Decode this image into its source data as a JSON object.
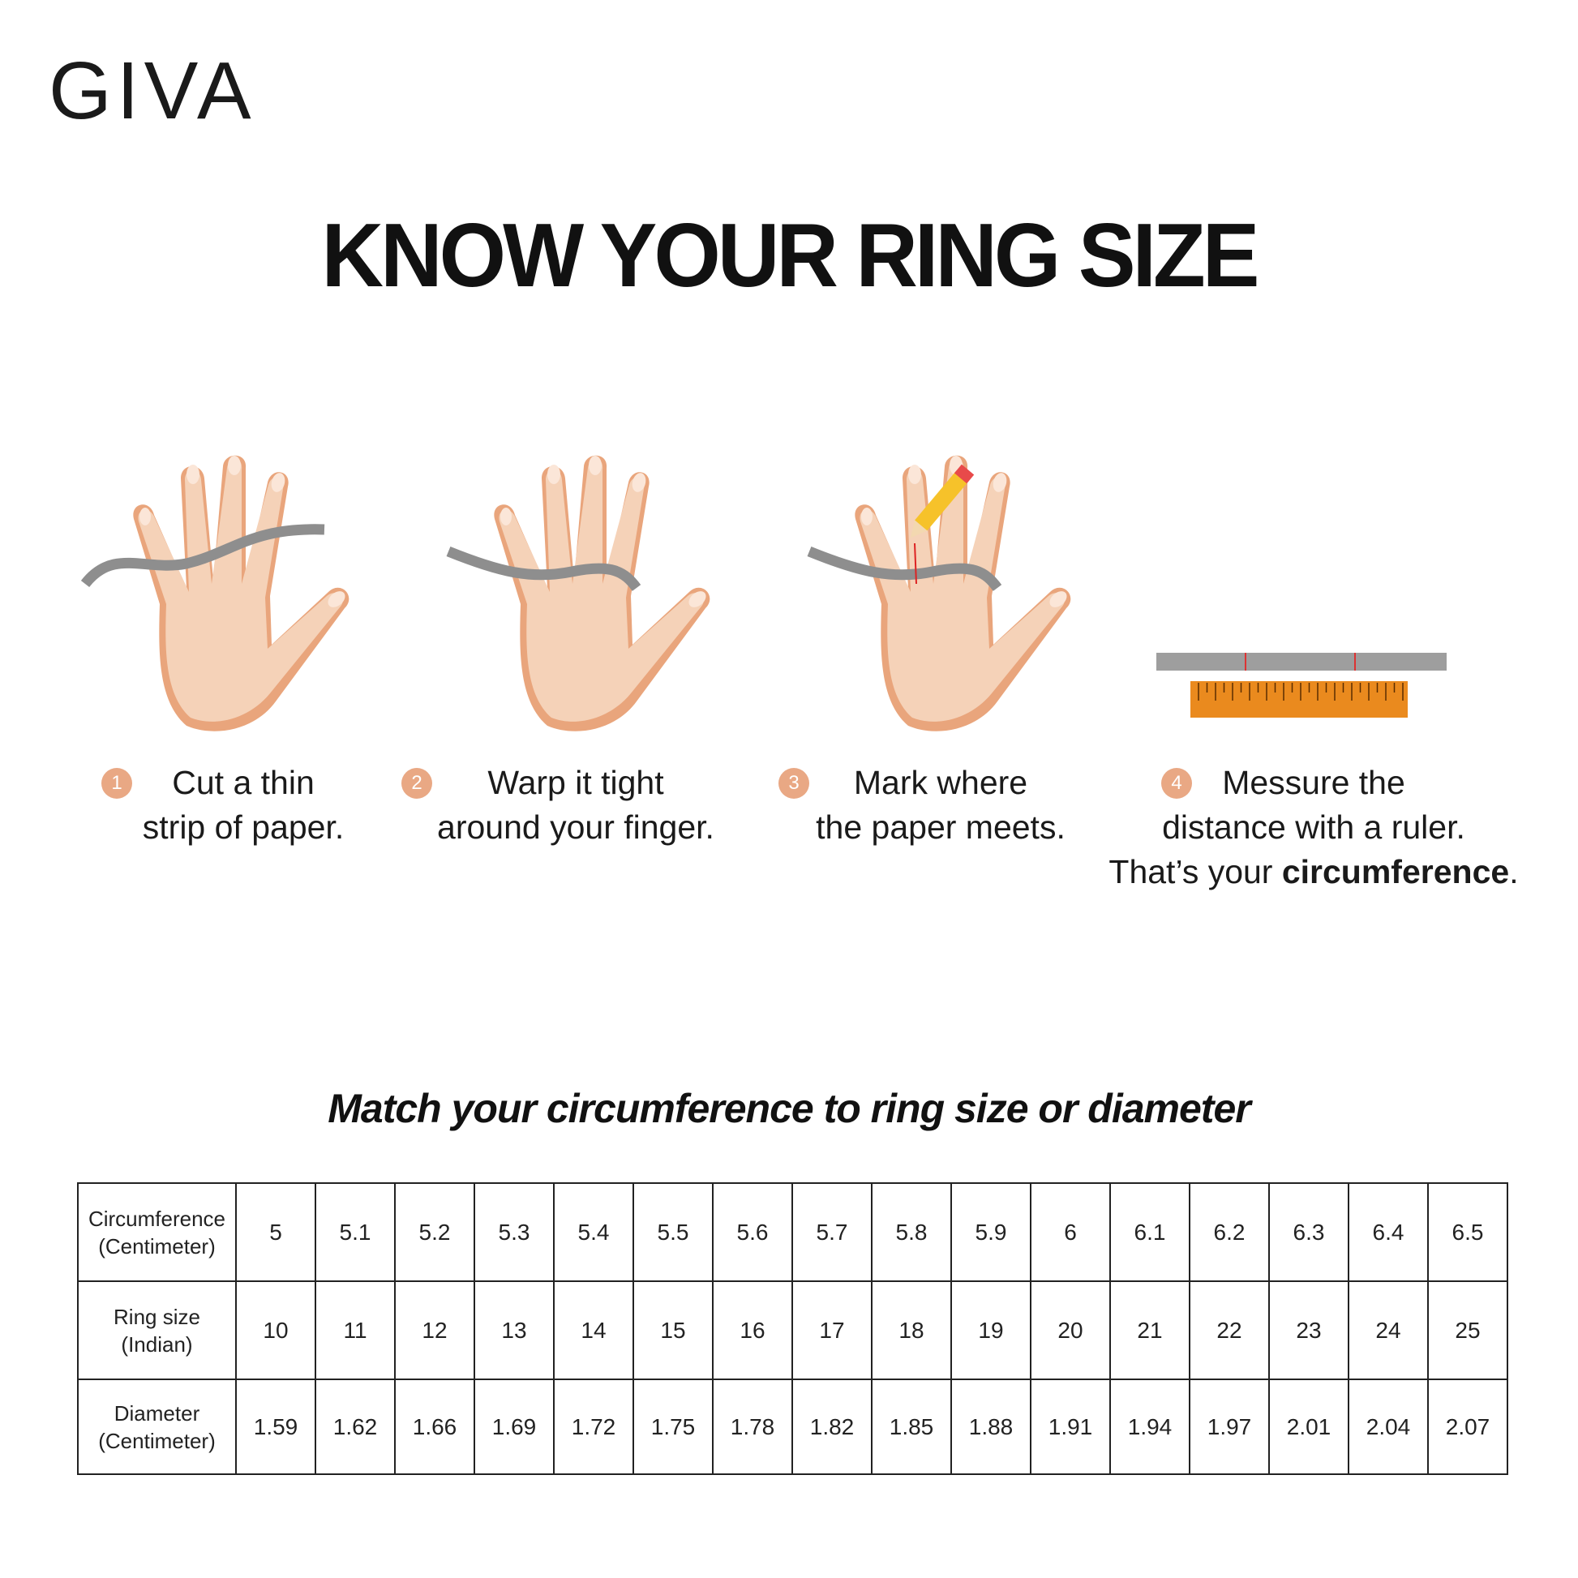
{
  "brand": {
    "logo_text": "GIVA"
  },
  "title": "KNOW YOUR RING SIZE",
  "steps": [
    {
      "number": "1",
      "line1": "Cut a thin",
      "line2": "strip of paper."
    },
    {
      "number": "2",
      "line1": "Warp it tight",
      "line2": "around your finger."
    },
    {
      "number": "3",
      "line1": "Mark where",
      "line2": "the paper meets."
    },
    {
      "number": "4",
      "line1": "Messure the",
      "line2": "distance with a ruler.",
      "line3_prefix": "That’s your ",
      "line3_bold": "circumference",
      "line3_suffix": "."
    }
  ],
  "subtitle": "Match your circumference to ring size or diameter",
  "table": {
    "rows": [
      {
        "label1": "Circumference",
        "label2": "(Centimeter)",
        "values": [
          "5",
          "5.1",
          "5.2",
          "5.3",
          "5.4",
          "5.5",
          "5.6",
          "5.7",
          "5.8",
          "5.9",
          "6",
          "6.1",
          "6.2",
          "6.3",
          "6.4",
          "6.5"
        ]
      },
      {
        "label1": "Ring size",
        "label2": "(Indian)",
        "values": [
          "10",
          "11",
          "12",
          "13",
          "14",
          "15",
          "16",
          "17",
          "18",
          "19",
          "20",
          "21",
          "22",
          "23",
          "24",
          "25"
        ]
      },
      {
        "label1": "Diameter",
        "label2": "(Centimeter)",
        "values": [
          "1.59",
          "1.62",
          "1.66",
          "1.69",
          "1.72",
          "1.75",
          "1.78",
          "1.82",
          "1.85",
          "1.88",
          "1.91",
          "1.94",
          "1.97",
          "2.01",
          "2.04",
          "2.07"
        ]
      }
    ]
  },
  "colors": {
    "skin": "#f5d2b8",
    "skin_shadow": "#e9a57c",
    "paper_strip": "#8e8e8e",
    "ruler": "#ea8a1e",
    "step_badge": "#e9a884"
  }
}
